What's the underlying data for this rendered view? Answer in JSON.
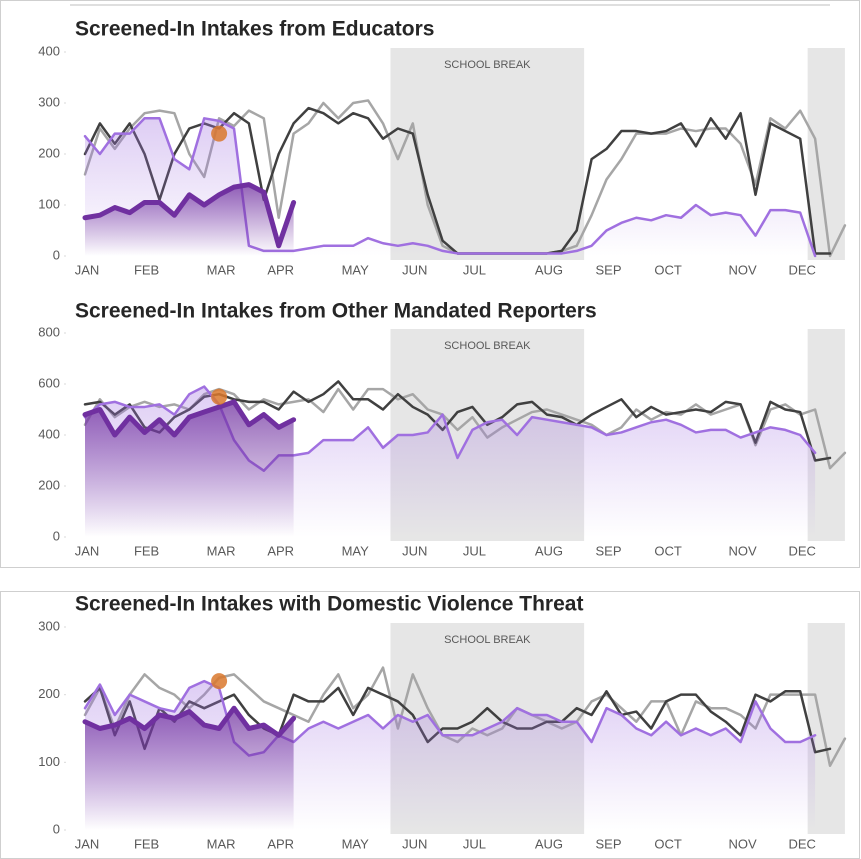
{
  "chart_data": [
    {
      "type": "line",
      "title": "Screened-In Intakes from Educators",
      "categories": [
        "JAN",
        null,
        null,
        null,
        "FEB",
        null,
        null,
        null,
        null,
        "MAR",
        null,
        null,
        null,
        "APR",
        null,
        null,
        null,
        null,
        "MAY",
        null,
        null,
        null,
        "JUN",
        null,
        null,
        null,
        "JUL",
        null,
        null,
        null,
        null,
        "AUG",
        null,
        null,
        null,
        "SEP",
        null,
        null,
        null,
        "OCT",
        null,
        null,
        null,
        null,
        "NOV",
        null,
        null,
        null,
        "DEC",
        null,
        null,
        null
      ],
      "ylim": [
        0,
        400
      ],
      "yticks": [
        0,
        100,
        200,
        300,
        400
      ],
      "bands": [
        {
          "label": "SCHOOL BREAK",
          "from": 20.5,
          "to": 33.5
        },
        {
          "from": 48.5,
          "to": 51
        }
      ],
      "highlight": {
        "index": 9,
        "value": 240,
        "color": "#d9782d"
      },
      "series": [
        {
          "color": "#a6a6a6",
          "values": [
            160,
            250,
            210,
            250,
            280,
            285,
            280,
            200,
            155,
            270,
            255,
            285,
            270,
            75,
            240,
            260,
            300,
            270,
            300,
            305,
            260,
            190,
            260,
            100,
            20,
            5,
            5,
            5,
            5,
            5,
            5,
            5,
            10,
            20,
            80,
            150,
            190,
            240,
            240,
            240,
            250,
            245,
            250,
            250,
            220,
            140,
            270,
            250,
            285,
            230,
            0,
            60
          ]
        },
        {
          "color": "#404040",
          "values": [
            200,
            260,
            220,
            260,
            200,
            110,
            200,
            250,
            260,
            250,
            280,
            260,
            110,
            200,
            260,
            290,
            280,
            260,
            280,
            270,
            230,
            250,
            240,
            120,
            30,
            5,
            5,
            5,
            5,
            5,
            5,
            5,
            10,
            50,
            190,
            210,
            245,
            245,
            240,
            245,
            260,
            215,
            270,
            230,
            280,
            120,
            260,
            245,
            230,
            5,
            5,
            null
          ]
        },
        {
          "color": "#a070e0",
          "area": true,
          "values": [
            235,
            200,
            240,
            240,
            270,
            270,
            190,
            170,
            270,
            265,
            250,
            20,
            10,
            10,
            10,
            15,
            20,
            20,
            20,
            35,
            25,
            20,
            25,
            20,
            10,
            5,
            5,
            5,
            5,
            5,
            5,
            5,
            5,
            10,
            20,
            50,
            65,
            75,
            70,
            80,
            75,
            100,
            80,
            85,
            80,
            40,
            90,
            90,
            85,
            0,
            null,
            null
          ]
        },
        {
          "color": "#7030a0",
          "area": true,
          "values": [
            75,
            80,
            95,
            85,
            105,
            105,
            80,
            120,
            100,
            120,
            135,
            140,
            125,
            20,
            105,
            null,
            null,
            null,
            null,
            null,
            null,
            null,
            null,
            null,
            null,
            null,
            null,
            null,
            null,
            null,
            null,
            null,
            null,
            null,
            null,
            null,
            null,
            null,
            null,
            null,
            null,
            null,
            null,
            null,
            null,
            null,
            null,
            null,
            null,
            null,
            null,
            null
          ]
        }
      ]
    },
    {
      "type": "line",
      "title": "Screened-In Intakes from Other Mandated Reporters",
      "categories": [
        "JAN",
        null,
        null,
        null,
        "FEB",
        null,
        null,
        null,
        null,
        "MAR",
        null,
        null,
        null,
        "APR",
        null,
        null,
        null,
        null,
        "MAY",
        null,
        null,
        null,
        "JUN",
        null,
        null,
        null,
        "JUL",
        null,
        null,
        null,
        null,
        "AUG",
        null,
        null,
        null,
        "SEP",
        null,
        null,
        null,
        "OCT",
        null,
        null,
        null,
        null,
        "NOV",
        null,
        null,
        null,
        "DEC",
        null,
        null,
        null
      ],
      "ylim": [
        0,
        800
      ],
      "yticks": [
        0,
        200,
        400,
        600,
        800
      ],
      "bands": [
        {
          "label": "SCHOOL BREAK",
          "from": 20.5,
          "to": 33.5
        },
        {
          "from": 48.5,
          "to": 51
        }
      ],
      "highlight": {
        "index": 9,
        "value": 550,
        "color": "#d9782d"
      },
      "series": [
        {
          "color": "#a6a6a6",
          "values": [
            440,
            540,
            470,
            510,
            530,
            510,
            520,
            500,
            560,
            580,
            560,
            500,
            540,
            520,
            530,
            540,
            490,
            580,
            500,
            580,
            580,
            540,
            560,
            500,
            480,
            420,
            470,
            390,
            430,
            460,
            490,
            500,
            480,
            460,
            440,
            400,
            430,
            500,
            460,
            490,
            480,
            520,
            480,
            500,
            520,
            360,
            500,
            520,
            480,
            500,
            270,
            330
          ]
        },
        {
          "color": "#404040",
          "values": [
            520,
            530,
            480,
            520,
            430,
            410,
            470,
            500,
            550,
            560,
            540,
            530,
            530,
            500,
            570,
            530,
            560,
            610,
            540,
            540,
            500,
            560,
            510,
            480,
            420,
            490,
            510,
            440,
            470,
            520,
            530,
            480,
            470,
            440,
            480,
            510,
            540,
            470,
            510,
            480,
            490,
            500,
            490,
            530,
            520,
            370,
            530,
            500,
            490,
            300,
            310,
            null
          ]
        },
        {
          "color": "#a070e0",
          "area": true,
          "values": [
            470,
            520,
            530,
            510,
            510,
            520,
            480,
            560,
            590,
            520,
            380,
            300,
            260,
            320,
            320,
            330,
            380,
            380,
            380,
            430,
            350,
            400,
            400,
            410,
            480,
            310,
            420,
            450,
            460,
            400,
            470,
            460,
            450,
            440,
            430,
            400,
            410,
            430,
            450,
            460,
            440,
            410,
            420,
            420,
            390,
            410,
            430,
            420,
            400,
            330,
            null,
            null
          ]
        },
        {
          "color": "#7030a0",
          "area": true,
          "values": [
            480,
            500,
            400,
            470,
            410,
            460,
            400,
            470,
            490,
            510,
            530,
            440,
            480,
            430,
            460,
            null,
            null,
            null,
            null,
            null,
            null,
            null,
            null,
            null,
            null,
            null,
            null,
            null,
            null,
            null,
            null,
            null,
            null,
            null,
            null,
            null,
            null,
            null,
            null,
            null,
            null,
            null,
            null,
            null,
            null,
            null,
            null,
            null,
            null,
            null,
            null,
            null
          ]
        }
      ]
    },
    {
      "type": "line",
      "title": "Screened-In Intakes with Domestic Violence Threat",
      "categories": [
        "JAN",
        null,
        null,
        null,
        "FEB",
        null,
        null,
        null,
        null,
        "MAR",
        null,
        null,
        null,
        "APR",
        null,
        null,
        null,
        null,
        "MAY",
        null,
        null,
        null,
        "JUN",
        null,
        null,
        null,
        "JUL",
        null,
        null,
        null,
        null,
        "AUG",
        null,
        null,
        null,
        "SEP",
        null,
        null,
        null,
        "OCT",
        null,
        null,
        null,
        null,
        "NOV",
        null,
        null,
        null,
        "DEC",
        null,
        null,
        null
      ],
      "ylim": [
        0,
        300
      ],
      "yticks": [
        0,
        100,
        200,
        300
      ],
      "bands": [
        {
          "label": "SCHOOL BREAK",
          "from": 20.5,
          "to": 33.5
        },
        {
          "from": 48.5,
          "to": 51
        }
      ],
      "highlight": {
        "index": 9,
        "value": 220,
        "color": "#d9782d"
      },
      "series": [
        {
          "color": "#a6a6a6",
          "values": [
            170,
            210,
            150,
            200,
            230,
            210,
            200,
            180,
            200,
            225,
            230,
            210,
            190,
            180,
            170,
            160,
            200,
            230,
            180,
            200,
            240,
            150,
            230,
            180,
            140,
            130,
            150,
            140,
            150,
            180,
            170,
            160,
            150,
            160,
            190,
            200,
            180,
            160,
            190,
            190,
            140,
            190,
            180,
            180,
            170,
            150,
            200,
            200,
            200,
            200,
            95,
            135
          ]
        },
        {
          "color": "#404040",
          "values": [
            190,
            210,
            140,
            190,
            120,
            180,
            160,
            190,
            180,
            190,
            200,
            170,
            150,
            140,
            200,
            190,
            190,
            210,
            170,
            210,
            200,
            190,
            170,
            130,
            150,
            150,
            160,
            180,
            160,
            150,
            150,
            160,
            160,
            180,
            170,
            205,
            170,
            175,
            150,
            190,
            200,
            200,
            175,
            160,
            140,
            200,
            190,
            205,
            205,
            115,
            120,
            null
          ]
        },
        {
          "color": "#a070e0",
          "area": true,
          "values": [
            180,
            215,
            170,
            200,
            190,
            180,
            175,
            210,
            220,
            210,
            130,
            110,
            115,
            140,
            130,
            150,
            160,
            150,
            160,
            170,
            150,
            170,
            160,
            170,
            140,
            140,
            140,
            150,
            160,
            180,
            170,
            170,
            160,
            160,
            130,
            180,
            170,
            150,
            140,
            160,
            140,
            150,
            140,
            150,
            130,
            190,
            150,
            130,
            130,
            140,
            null,
            null
          ]
        },
        {
          "color": "#7030a0",
          "area": true,
          "values": [
            160,
            150,
            155,
            165,
            150,
            170,
            165,
            175,
            155,
            150,
            180,
            150,
            155,
            140,
            165,
            null,
            null,
            null,
            null,
            null,
            null,
            null,
            null,
            null,
            null,
            null,
            null,
            null,
            null,
            null,
            null,
            null,
            null,
            null,
            null,
            null,
            null,
            null,
            null,
            null,
            null,
            null,
            null,
            null,
            null,
            null,
            null,
            null,
            null,
            null,
            null,
            null
          ]
        }
      ]
    }
  ]
}
